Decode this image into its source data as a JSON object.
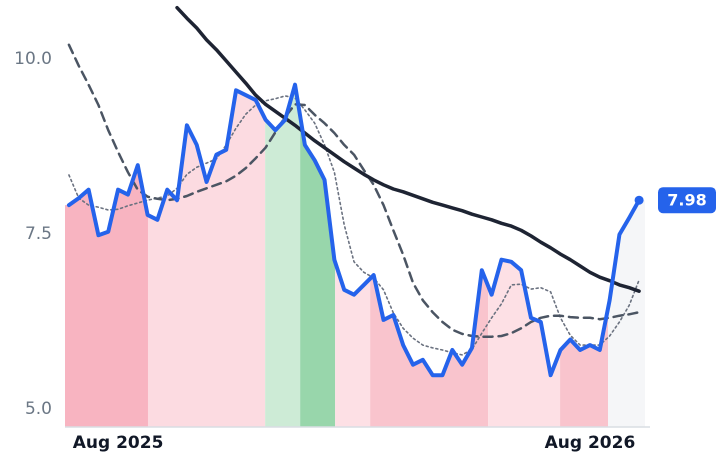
{
  "chart_data": {
    "type": "line",
    "xlim": [
      -1.35,
      13.4
    ],
    "ylim": [
      4.74,
      10.84
    ],
    "xticks": [
      {
        "value": 0,
        "label": "Aug 2025"
      },
      {
        "value": 12,
        "label": "Aug 2026"
      }
    ],
    "yticks": [
      {
        "value": 5,
        "label": "5.0"
      },
      7.5,
      {
        "value": 10,
        "label": "10.0"
      }
    ],
    "grid": false,
    "x": [
      -1.25,
      -1,
      -0.75,
      -0.5,
      -0.25,
      0,
      0.25,
      0.5,
      0.75,
      1,
      1.25,
      1.5,
      1.75,
      2,
      2.25,
      2.5,
      2.75,
      3,
      3.25,
      3.5,
      3.75,
      4,
      4.25,
      4.5,
      4.75,
      5,
      5.25,
      5.5,
      5.75,
      6,
      6.25,
      6.5,
      6.75,
      7,
      7.25,
      7.5,
      7.75,
      8,
      8.25,
      8.5,
      8.75,
      9,
      9.25,
      9.5,
      9.75,
      10,
      10.25,
      10.5,
      10.75,
      11,
      11.25,
      11.5,
      11.75,
      12,
      12.25,
      12.5,
      12.75,
      13,
      13.25
    ],
    "series": [
      {
        "color": "#2563eb",
        "style": "solid",
        "values": [
          7.91,
          8.01,
          8.13,
          7.48,
          7.53,
          8.13,
          8.06,
          8.48,
          7.77,
          7.7,
          8.13,
          7.98,
          9.05,
          8.77,
          8.24,
          8.63,
          8.7,
          9.55,
          9.48,
          9.41,
          9.13,
          8.98,
          9.13,
          9.63,
          8.77,
          8.55,
          8.27,
          7.13,
          6.7,
          6.63,
          6.77,
          6.91,
          6.27,
          6.34,
          5.91,
          5.63,
          5.7,
          5.48,
          5.48,
          5.84,
          5.63,
          5.87,
          6.98,
          6.63,
          7.13,
          7.1,
          6.98,
          6.3,
          6.24,
          5.48,
          5.84,
          5.99,
          5.84,
          5.91,
          5.84,
          6.55,
          7.49,
          7.73,
          7.98
        ]
      },
      {
        "color": "#1e2433",
        "style": "solid",
        "values": [
          null,
          null,
          null,
          null,
          null,
          null,
          null,
          null,
          null,
          null,
          null,
          10.73,
          10.58,
          10.44,
          10.27,
          10.13,
          9.97,
          9.81,
          9.65,
          9.48,
          9.35,
          9.25,
          9.15,
          9.05,
          8.94,
          8.83,
          8.73,
          8.63,
          8.53,
          8.44,
          8.35,
          8.27,
          8.2,
          8.14,
          8.1,
          8.05,
          8.0,
          7.95,
          7.91,
          7.87,
          7.83,
          7.78,
          7.74,
          7.7,
          7.65,
          7.61,
          7.55,
          7.47,
          7.38,
          7.3,
          7.21,
          7.13,
          7.04,
          6.95,
          6.88,
          6.83,
          6.77,
          6.73,
          6.68
        ]
      },
      {
        "color": "#4b5563",
        "style": "dashed",
        "values": [
          10.2,
          9.9,
          9.63,
          9.34,
          8.98,
          8.67,
          8.38,
          8.13,
          8.03,
          8.0,
          7.98,
          8.0,
          8.04,
          8.1,
          8.15,
          8.2,
          8.25,
          8.33,
          8.44,
          8.58,
          8.73,
          8.95,
          9.17,
          9.35,
          9.34,
          9.2,
          9.08,
          8.94,
          8.77,
          8.63,
          8.41,
          8.2,
          7.91,
          7.55,
          7.2,
          6.8,
          6.55,
          6.38,
          6.24,
          6.13,
          6.07,
          6.04,
          6.03,
          6.03,
          6.04,
          6.08,
          6.15,
          6.24,
          6.3,
          6.33,
          6.33,
          6.31,
          6.3,
          6.3,
          6.28,
          6.3,
          6.33,
          6.35,
          6.38
        ]
      },
      {
        "color": "#6b7280",
        "style": "dotted",
        "values": [
          8.34,
          8.01,
          7.91,
          7.88,
          7.84,
          7.85,
          7.9,
          7.94,
          7.98,
          8.01,
          8.04,
          8.15,
          8.35,
          8.45,
          8.51,
          8.57,
          8.77,
          9.01,
          9.21,
          9.34,
          9.4,
          9.43,
          9.47,
          9.44,
          9.27,
          9.08,
          8.77,
          8.38,
          7.63,
          7.1,
          6.95,
          6.87,
          6.7,
          6.37,
          6.15,
          6.01,
          5.91,
          5.87,
          5.84,
          5.8,
          5.77,
          5.85,
          6.08,
          6.3,
          6.5,
          6.77,
          6.78,
          6.71,
          6.73,
          6.67,
          6.3,
          6.05,
          5.91,
          5.91,
          5.91,
          6.04,
          6.24,
          6.48,
          6.84
        ]
      }
    ],
    "regions": [
      {
        "from": -1.35,
        "to": 0.76,
        "color": "#f8b4c1"
      },
      {
        "from": 0.76,
        "to": 3.74,
        "color": "#fcdbe1"
      },
      {
        "from": 3.74,
        "to": 4.63,
        "color": "#cdebd6"
      },
      {
        "from": 4.63,
        "to": 5.52,
        "color": "#98d6ab"
      },
      {
        "from": 5.52,
        "to": 6.41,
        "color": "#fde0e5"
      },
      {
        "from": 6.41,
        "to": 9.41,
        "color": "#f9c4cd"
      },
      {
        "from": 9.41,
        "to": 11.24,
        "color": "#fde0e5"
      },
      {
        "from": 11.24,
        "to": 12.46,
        "color": "#f9c4cd"
      },
      {
        "from": 12.46,
        "to": 13.4,
        "color": "#f5f6f8"
      }
    ]
  }
}
